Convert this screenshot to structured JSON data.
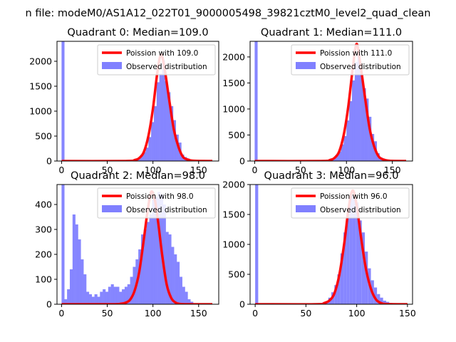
{
  "suptitle": "n file: modeM0/AS1A12_022T01_9000005498_39821cztM0_level2_quad_clean",
  "legend": {
    "fit_label_prefix": "Poission with",
    "observed_label": "Observed distribution"
  },
  "colors": {
    "fit": "#ff0000",
    "hist": "#8080ff",
    "axis": "#000000",
    "background": "#ffffff"
  },
  "chart_data": [
    {
      "type": "bar",
      "title": "Quadrant 0: Median=109.0",
      "median": 109.0,
      "legend_fit": "Poission with 109.0",
      "legend_position": "upper-right",
      "xlim": [
        -5,
        172
      ],
      "ylim": [
        0,
        2400
      ],
      "xticks": [
        0,
        50,
        100,
        150
      ],
      "yticks": [
        0,
        500,
        1000,
        1500,
        2000
      ],
      "bin_width": 3.2,
      "bins": [
        {
          "x": 0,
          "y": 2400
        },
        {
          "x": 80,
          "y": 30
        },
        {
          "x": 83,
          "y": 50
        },
        {
          "x": 86,
          "y": 120
        },
        {
          "x": 89,
          "y": 180
        },
        {
          "x": 92,
          "y": 270
        },
        {
          "x": 95,
          "y": 480
        },
        {
          "x": 98,
          "y": 780
        },
        {
          "x": 101,
          "y": 1100
        },
        {
          "x": 104,
          "y": 1580
        },
        {
          "x": 107,
          "y": 1750
        },
        {
          "x": 110,
          "y": 2020
        },
        {
          "x": 113,
          "y": 1600
        },
        {
          "x": 116,
          "y": 1380
        },
        {
          "x": 119,
          "y": 1100
        },
        {
          "x": 122,
          "y": 820
        },
        {
          "x": 125,
          "y": 530
        },
        {
          "x": 128,
          "y": 370
        },
        {
          "x": 131,
          "y": 130
        },
        {
          "x": 134,
          "y": 80
        },
        {
          "x": 137,
          "y": 50
        },
        {
          "x": 140,
          "y": 20
        }
      ],
      "fit": {
        "x": [
          0,
          70,
          80,
          85,
          90,
          95,
          100,
          105,
          109,
          113,
          118,
          123,
          128,
          133,
          138,
          145,
          165
        ],
        "y": [
          0,
          0,
          20,
          60,
          180,
          500,
          1050,
          1800,
          2130,
          1820,
          1200,
          620,
          280,
          80,
          30,
          5,
          0
        ]
      }
    },
    {
      "type": "bar",
      "title": "Quadrant 1: Median=111.0",
      "median": 111.0,
      "legend_fit": "Poission with 111.0",
      "legend_position": "upper-right",
      "xlim": [
        -5,
        172
      ],
      "ylim": [
        0,
        2300
      ],
      "xticks": [
        0,
        50,
        100,
        150
      ],
      "yticks": [
        0,
        500,
        1000,
        1500,
        2000
      ],
      "bin_width": 3.2,
      "bins": [
        {
          "x": 0,
          "y": 2300
        },
        {
          "x": 82,
          "y": 30
        },
        {
          "x": 85,
          "y": 60
        },
        {
          "x": 88,
          "y": 120
        },
        {
          "x": 91,
          "y": 180
        },
        {
          "x": 94,
          "y": 320
        },
        {
          "x": 97,
          "y": 480
        },
        {
          "x": 100,
          "y": 780
        },
        {
          "x": 103,
          "y": 1150
        },
        {
          "x": 106,
          "y": 1550
        },
        {
          "x": 109,
          "y": 1900
        },
        {
          "x": 112,
          "y": 2050
        },
        {
          "x": 115,
          "y": 1650
        },
        {
          "x": 118,
          "y": 1400
        },
        {
          "x": 121,
          "y": 1200
        },
        {
          "x": 124,
          "y": 850
        },
        {
          "x": 127,
          "y": 520
        },
        {
          "x": 130,
          "y": 380
        },
        {
          "x": 133,
          "y": 150
        },
        {
          "x": 136,
          "y": 70
        },
        {
          "x": 139,
          "y": 40
        },
        {
          "x": 142,
          "y": 20
        }
      ],
      "fit": {
        "x": [
          0,
          72,
          82,
          87,
          92,
          97,
          102,
          107,
          111,
          115,
          120,
          125,
          130,
          135,
          140,
          147,
          165
        ],
        "y": [
          0,
          0,
          20,
          60,
          180,
          500,
          1050,
          1800,
          2250,
          1880,
          1250,
          650,
          290,
          90,
          30,
          5,
          0
        ]
      }
    },
    {
      "type": "bar",
      "title": "Quadrant 2: Median=98.0",
      "median": 98.0,
      "legend_fit": "Poission with 98.0",
      "legend_position": "upper-right",
      "xlim": [
        -5,
        172
      ],
      "ylim": [
        0,
        480
      ],
      "xticks": [
        0,
        50,
        100,
        150
      ],
      "yticks": [
        0,
        100,
        200,
        300,
        400
      ],
      "bin_width": 3.2,
      "bins": [
        {
          "x": 0,
          "y": 480
        },
        {
          "x": 3,
          "y": 20
        },
        {
          "x": 6,
          "y": 60
        },
        {
          "x": 9,
          "y": 140
        },
        {
          "x": 12,
          "y": 360
        },
        {
          "x": 15,
          "y": 320
        },
        {
          "x": 18,
          "y": 260
        },
        {
          "x": 21,
          "y": 180
        },
        {
          "x": 24,
          "y": 120
        },
        {
          "x": 27,
          "y": 50
        },
        {
          "x": 30,
          "y": 40
        },
        {
          "x": 33,
          "y": 30
        },
        {
          "x": 36,
          "y": 40
        },
        {
          "x": 39,
          "y": 30
        },
        {
          "x": 42,
          "y": 50
        },
        {
          "x": 45,
          "y": 60
        },
        {
          "x": 48,
          "y": 50
        },
        {
          "x": 51,
          "y": 70
        },
        {
          "x": 54,
          "y": 80
        },
        {
          "x": 57,
          "y": 70
        },
        {
          "x": 60,
          "y": 70
        },
        {
          "x": 63,
          "y": 50
        },
        {
          "x": 66,
          "y": 60
        },
        {
          "x": 69,
          "y": 70
        },
        {
          "x": 72,
          "y": 80
        },
        {
          "x": 75,
          "y": 110
        },
        {
          "x": 78,
          "y": 150
        },
        {
          "x": 81,
          "y": 180
        },
        {
          "x": 84,
          "y": 220
        },
        {
          "x": 87,
          "y": 280
        },
        {
          "x": 90,
          "y": 300
        },
        {
          "x": 93,
          "y": 330
        },
        {
          "x": 96,
          "y": 360
        },
        {
          "x": 99,
          "y": 420
        },
        {
          "x": 102,
          "y": 430
        },
        {
          "x": 105,
          "y": 450
        },
        {
          "x": 108,
          "y": 440
        },
        {
          "x": 111,
          "y": 400
        },
        {
          "x": 114,
          "y": 290
        },
        {
          "x": 117,
          "y": 280
        },
        {
          "x": 120,
          "y": 230
        },
        {
          "x": 123,
          "y": 200
        },
        {
          "x": 126,
          "y": 170
        },
        {
          "x": 129,
          "y": 110
        },
        {
          "x": 132,
          "y": 70
        },
        {
          "x": 135,
          "y": 50
        },
        {
          "x": 138,
          "y": 20
        },
        {
          "x": 141,
          "y": 10
        }
      ],
      "fit": {
        "x": [
          0,
          55,
          65,
          70,
          75,
          80,
          85,
          90,
          94,
          98,
          102,
          106,
          110,
          115,
          120,
          125,
          130,
          140,
          165
        ],
        "y": [
          0,
          0,
          2,
          6,
          18,
          55,
          130,
          260,
          370,
          450,
          420,
          320,
          200,
          80,
          25,
          6,
          1,
          0,
          0
        ]
      }
    },
    {
      "type": "bar",
      "title": "Quadrant 3: Median=96.0",
      "median": 96.0,
      "legend_fit": "Poission with 96.0",
      "legend_position": "upper-right",
      "xlim": [
        -5,
        155
      ],
      "ylim": [
        0,
        2000
      ],
      "xticks": [
        0,
        50,
        100,
        150
      ],
      "yticks": [
        0,
        500,
        1000,
        1500,
        2000
      ],
      "bin_width": 3.0,
      "bins": [
        {
          "x": 0,
          "y": 2000
        },
        {
          "x": 15,
          "y": 10
        },
        {
          "x": 66,
          "y": 30
        },
        {
          "x": 69,
          "y": 50
        },
        {
          "x": 72,
          "y": 110
        },
        {
          "x": 75,
          "y": 200
        },
        {
          "x": 78,
          "y": 320
        },
        {
          "x": 81,
          "y": 500
        },
        {
          "x": 84,
          "y": 850
        },
        {
          "x": 87,
          "y": 1200
        },
        {
          "x": 90,
          "y": 1500
        },
        {
          "x": 93,
          "y": 1820
        },
        {
          "x": 96,
          "y": 1800
        },
        {
          "x": 99,
          "y": 1700
        },
        {
          "x": 102,
          "y": 1400
        },
        {
          "x": 105,
          "y": 1200
        },
        {
          "x": 108,
          "y": 880
        },
        {
          "x": 111,
          "y": 600
        },
        {
          "x": 114,
          "y": 400
        },
        {
          "x": 117,
          "y": 280
        },
        {
          "x": 120,
          "y": 170
        },
        {
          "x": 123,
          "y": 110
        },
        {
          "x": 126,
          "y": 60
        },
        {
          "x": 129,
          "y": 40
        },
        {
          "x": 132,
          "y": 20
        }
      ],
      "fit": {
        "x": [
          0,
          60,
          68,
          73,
          78,
          83,
          88,
          92,
          96,
          100,
          104,
          109,
          114,
          119,
          124,
          130,
          150
        ],
        "y": [
          0,
          0,
          20,
          60,
          180,
          500,
          1050,
          1600,
          1900,
          1650,
          1150,
          600,
          260,
          80,
          20,
          3,
          0
        ]
      }
    }
  ]
}
